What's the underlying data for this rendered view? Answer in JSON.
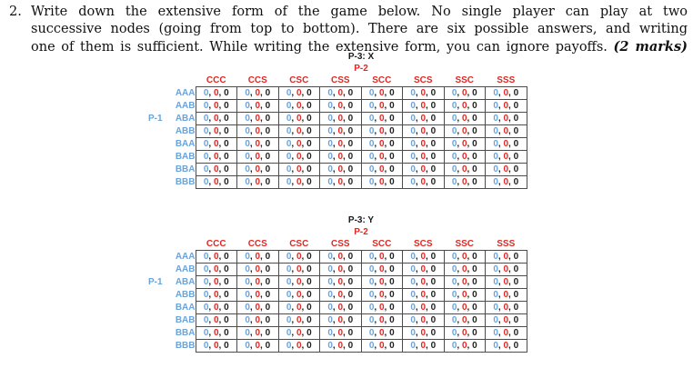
{
  "question": {
    "number": "2.",
    "lines": [
      "Write down the extensive form of the game below. No single player can play at two",
      "successive nodes (going from top to bottom). There are six possible answers, and writing",
      "one of them is sufficient. While writing the extensive form, you can ignore payoffs."
    ],
    "marks": "(2 marks)"
  },
  "colors": {
    "p1_blue": "#6aa4da",
    "p2_red": "#e32722",
    "p3_black": "#1f1f1f",
    "title_black": "#1a1a1a",
    "border": "#4c4c4c"
  },
  "tables": [
    {
      "title": "P-3: X",
      "column_player": "P-2",
      "row_player": "P-1",
      "column_headers": [
        "CCC",
        "CCS",
        "CSC",
        "CSS",
        "SCC",
        "SCS",
        "SSC",
        "SSS"
      ],
      "row_headers": [
        "AAA",
        "AAB",
        "ABA",
        "ABB",
        "BAA",
        "BAB",
        "BBA",
        "BBB"
      ],
      "cells": [
        [
          "0, 0, 0",
          "0, 0, 0",
          "0, 0, 0",
          "0, 0, 0",
          "0, 0, 0",
          "0, 0, 0",
          "0, 0, 0",
          "0, 0, 0"
        ],
        [
          "0, 0, 0",
          "0, 0, 0",
          "0, 0, 0",
          "0, 0, 0",
          "0, 0, 0",
          "0, 0, 0",
          "0, 0, 0",
          "0, 0, 0"
        ],
        [
          "0, 0, 0",
          "0, 0, 0",
          "0, 0, 0",
          "0, 0, 0",
          "0, 0, 0",
          "0, 0, 0",
          "0, 0, 0",
          "0, 0, 0"
        ],
        [
          "0, 0, 0",
          "0, 0, 0",
          "0, 0, 0",
          "0, 0, 0",
          "0, 0, 0",
          "0, 0, 0",
          "0, 0, 0",
          "0, 0, 0"
        ],
        [
          "0, 0, 0",
          "0, 0, 0",
          "0, 0, 0",
          "0, 0, 0",
          "0, 0, 0",
          "0, 0, 0",
          "0, 0, 0",
          "0, 0, 0"
        ],
        [
          "0, 0, 0",
          "0, 0, 0",
          "0, 0, 0",
          "0, 0, 0",
          "0, 0, 0",
          "0, 0, 0",
          "0, 0, 0",
          "0, 0, 0"
        ],
        [
          "0, 0, 0",
          "0, 0, 0",
          "0, 0, 0",
          "0, 0, 0",
          "0, 0, 0",
          "0, 0, 0",
          "0, 0, 0",
          "0, 0, 0"
        ],
        [
          "0, 0, 0",
          "0, 0, 0",
          "0, 0, 0",
          "0, 0, 0",
          "0, 0, 0",
          "0, 0, 0",
          "0, 0, 0",
          "0, 0, 0"
        ]
      ]
    },
    {
      "title": "P-3: Y",
      "column_player": "P-2",
      "row_player": "P-1",
      "column_headers": [
        "CCC",
        "CCS",
        "CSC",
        "CSS",
        "SCC",
        "SCS",
        "SSC",
        "SSS"
      ],
      "row_headers": [
        "AAA",
        "AAB",
        "ABA",
        "ABB",
        "BAA",
        "BAB",
        "BBA",
        "BBB"
      ],
      "cells": [
        [
          "0, 0, 0",
          "0, 0, 0",
          "0, 0, 0",
          "0, 0, 0",
          "0, 0, 0",
          "0, 0, 0",
          "0, 0, 0",
          "0, 0, 0"
        ],
        [
          "0, 0, 0",
          "0, 0, 0",
          "0, 0, 0",
          "0, 0, 0",
          "0, 0, 0",
          "0, 0, 0",
          "0, 0, 0",
          "0, 0, 0"
        ],
        [
          "0, 0, 0",
          "0, 0, 0",
          "0, 0, 0",
          "0, 0, 0",
          "0, 0, 0",
          "0, 0, 0",
          "0, 0, 0",
          "0, 0, 0"
        ],
        [
          "0, 0, 0",
          "0, 0, 0",
          "0, 0, 0",
          "0, 0, 0",
          "0, 0, 0",
          "0, 0, 0",
          "0, 0, 0",
          "0, 0, 0"
        ],
        [
          "0, 0, 0",
          "0, 0, 0",
          "0, 0, 0",
          "0, 0, 0",
          "0, 0, 0",
          "0, 0, 0",
          "0, 0, 0",
          "0, 0, 0"
        ],
        [
          "0, 0, 0",
          "0, 0, 0",
          "0, 0, 0",
          "0, 0, 0",
          "0, 0, 0",
          "0, 0, 0",
          "0, 0, 0",
          "0, 0, 0"
        ],
        [
          "0, 0, 0",
          "0, 0, 0",
          "0, 0, 0",
          "0, 0, 0",
          "0, 0, 0",
          "0, 0, 0",
          "0, 0, 0",
          "0, 0, 0"
        ],
        [
          "0, 0, 0",
          "0, 0, 0",
          "0, 0, 0",
          "0, 0, 0",
          "0, 0, 0",
          "0, 0, 0",
          "0, 0, 0",
          "0, 0, 0"
        ]
      ]
    }
  ]
}
